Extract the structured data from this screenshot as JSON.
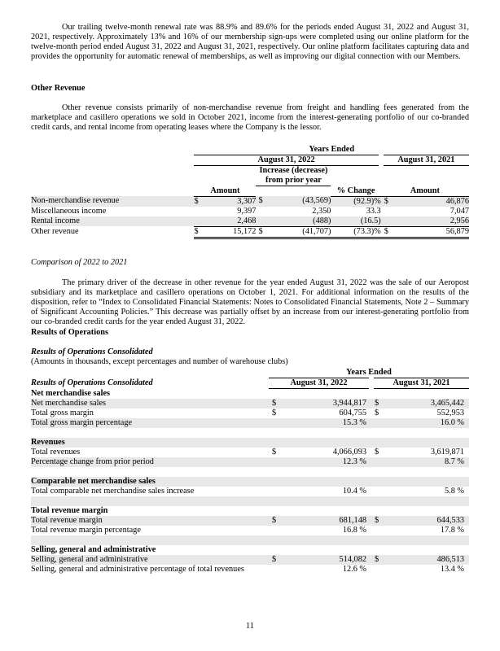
{
  "intro_paragraph": "Our trailing twelve-month renewal rate was 88.9% and 89.6% for the periods ended August 31, 2022 and August 31, 2021, respectively. Approximately 13% and 16% of our membership sign-ups were completed using our online platform for the twelve-month period ended August 31, 2022 and August 31, 2021, respectively. Our online platform facilitates capturing data and provides the opportunity for automatic renewal of memberships, as well as improving our digital connection with our Members.",
  "other_revenue": {
    "heading": "Other Revenue",
    "paragraph": "Other revenue consists primarily of non-merchandise revenue from freight and handling fees generated from the marketplace and casillero operations we sold in October 2021, income from the interest-generating portfolio of our co-branded credit cards, and rental income from operating leases where the Company is the lessor.",
    "table": {
      "years_ended": "Years Ended",
      "col_2022": "August 31, 2022",
      "col_2021": "August 31, 2021",
      "h_amount": "Amount",
      "h_increase": "Increase (decrease) from prior year",
      "h_increase_1": "Increase (decrease)",
      "h_increase_2": "from",
      "h_increase_3": "prior year",
      "h_change": "% Change",
      "h_amount_2021": "Amount",
      "rows": [
        {
          "label": "Non-merchandise revenue",
          "d1": "$",
          "amount": "3,307",
          "d2": "$",
          "increase": "(43,569)",
          "change": "(92.9)%",
          "d3": "$",
          "amount_2021": "46,876"
        },
        {
          "label": "Miscellaneous income",
          "d1": "",
          "amount": "9,397",
          "d2": "",
          "increase": "2,350",
          "change": "33.3",
          "d3": "",
          "amount_2021": "7,047"
        },
        {
          "label": "Rental income",
          "d1": "",
          "amount": "2,468",
          "d2": "",
          "increase": "(488)",
          "change": "(16.5)",
          "d3": "",
          "amount_2021": "2,956"
        },
        {
          "label": "Other revenue",
          "d1": "$",
          "amount": "15,172",
          "d2": "$",
          "increase": "(41,707)",
          "change": "(73.3)%",
          "d3": "$",
          "amount_2021": "56,879"
        }
      ]
    }
  },
  "comparison": {
    "heading": "Comparison of 2022 to 2021",
    "paragraph": "The primary driver of the decrease in other revenue for the year ended August 31, 2022 was the sale of our Aeropost subsidiary and its marketplace and casillero operations on October 1, 2021. For additional information on the results of the disposition, refer to “Index to Consolidated Financial Statements: Notes to Consolidated Financial Statements, Note 2 – Summary of Significant Accounting Policies.” This decrease was partially offset by an increase from our interest-generating portfolio from our co-branded credit cards for the year ended August 31, 2022."
  },
  "results": {
    "heading": "Results of Operations",
    "subheading": "Results of Operations Consolidated",
    "note": "(Amounts in thousands, except percentages and number of warehouse clubs)",
    "table": {
      "title": "Results of Operations Consolidated",
      "years_ended": "Years Ended",
      "col_2022": "August 31, 2022",
      "col_2021": "August 31, 2021",
      "rows": [
        {
          "label": "Net merchandise sales",
          "bold": true
        },
        {
          "label": "Net merchandise sales",
          "d1": "$",
          "v1": "3,944,817",
          "d2": "$",
          "v2": "3,465,442"
        },
        {
          "label": "Total gross margin",
          "d1": "$",
          "v1": "604,755",
          "d2": "$",
          "v2": "552,953"
        },
        {
          "label": "Total gross margin percentage",
          "v1": "15.3 %",
          "v2": "16.0 %"
        },
        {
          "label": ""
        },
        {
          "label": "Revenues",
          "bold": true
        },
        {
          "label": "Total revenues",
          "d1": "$",
          "v1": "4,066,093",
          "d2": "$",
          "v2": "3,619,871"
        },
        {
          "label": "Percentage change from prior period",
          "v1": "12.3 %",
          "v2": "8.7 %"
        },
        {
          "label": ""
        },
        {
          "label": "Comparable net merchandise sales",
          "bold": true
        },
        {
          "label": "Total comparable net merchandise sales increase",
          "v1": "10.4 %",
          "v2": "5.8 %"
        },
        {
          "label": ""
        },
        {
          "label": "Total revenue margin",
          "bold": true
        },
        {
          "label": "Total revenue margin",
          "d1": "$",
          "v1": "681,148",
          "d2": "$",
          "v2": "644,533"
        },
        {
          "label": "Total revenue margin percentage",
          "v1": "16.8 %",
          "v2": "17.8 %"
        },
        {
          "label": ""
        },
        {
          "label": "Selling, general and administrative",
          "bold": true
        },
        {
          "label": "Selling, general and administrative",
          "d1": "$",
          "v1": "514,082",
          "d2": "$",
          "v2": "486,513"
        },
        {
          "label": "Selling, general and administrative percentage of total revenues",
          "v1": "12.6 %",
          "v2": "13.4 %"
        }
      ]
    }
  },
  "page_number": "11"
}
